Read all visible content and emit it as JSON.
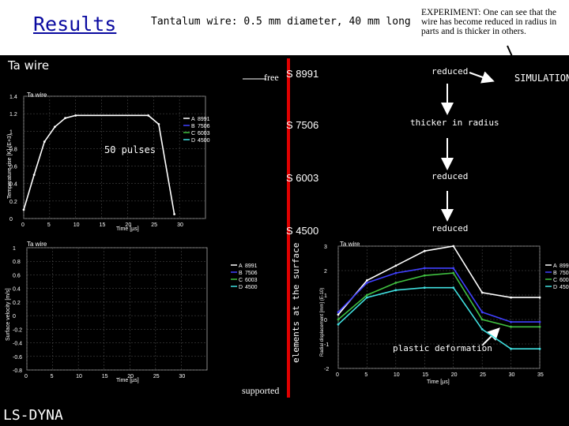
{
  "header": {
    "title": "Results",
    "subtitle": "Tantalum wire: 0.5 mm diameter, 40 mm long",
    "experiment": "EXPERIMENT: One can see that the wire has become reduced in radius in parts and is thicker in others."
  },
  "ta_wire_label": "Ta wire",
  "labels": {
    "free": "free",
    "supported": "supported",
    "elements_at_surface": "elements at the surface",
    "fifty_pulses": "50 pulses",
    "simulation": "SIMULATION",
    "plastic_deformation": "plastic deformation",
    "ls_dyna": "LS-DYNA"
  },
  "surface_elements": [
    {
      "id": "S 8991",
      "state": "reduced"
    },
    {
      "id": "S 7506",
      "state": "thicker in radius"
    },
    {
      "id": "S 6003",
      "state": "reduced"
    },
    {
      "id": "S 4500",
      "state": "reduced"
    }
  ],
  "legend_entries": [
    {
      "marker": "A",
      "id": "8991"
    },
    {
      "marker": "B",
      "id": "7506"
    },
    {
      "marker": "C",
      "id": "6003"
    },
    {
      "marker": "D",
      "id": "4500"
    }
  ],
  "colors": {
    "series_a": "#ffffff",
    "series_b": "#4040ff",
    "series_c": "#40c040",
    "series_d": "#40e0e0",
    "accent_red": "#e00000",
    "title_blue": "#0a0aa0"
  },
  "chart_data": [
    {
      "type": "line",
      "title": "Ta wire",
      "xlabel": "Time [µs]",
      "ylabel": "Temperature rise [K] (E+3)",
      "xlim": [
        0,
        35
      ],
      "ylim": [
        0,
        1.4
      ],
      "x_ticks": [
        "0",
        "5",
        "10",
        "15",
        "20",
        "25",
        "30"
      ],
      "y_ticks": [
        "0",
        "0.2",
        "0.4",
        "0.6",
        "0.8",
        "1",
        "1.2",
        "1.4"
      ],
      "series": [
        {
          "name": "8991",
          "x": [
            0,
            2,
            4,
            6,
            8,
            10,
            24,
            26,
            29
          ],
          "y": [
            0.1,
            0.5,
            0.88,
            1.05,
            1.15,
            1.18,
            1.18,
            1.08,
            0.05
          ]
        }
      ]
    },
    {
      "type": "line",
      "title": "Ta wire",
      "xlabel": "Time [µs]",
      "ylabel": "Surface velocity [m/s]",
      "xlim": [
        0,
        35
      ],
      "ylim": [
        -0.8,
        1.0
      ],
      "x_ticks": [
        "0",
        "5",
        "10",
        "15",
        "20",
        "25",
        "30"
      ],
      "y_ticks": [
        "-0.8",
        "-0.6",
        "-0.4",
        "-0.2",
        "0",
        "0.2",
        "0.4",
        "0.6",
        "0.8",
        "1"
      ]
    },
    {
      "type": "line",
      "title": "Ta wire",
      "xlabel": "Time [µs]",
      "ylabel": "Radial displacement [mm] (E-10)",
      "xlim": [
        0,
        35
      ],
      "ylim": [
        -2,
        3
      ],
      "x_ticks": [
        "0",
        "5",
        "10",
        "15",
        "20",
        "25",
        "30",
        "35"
      ],
      "y_ticks": [
        "-2",
        "-1",
        "0",
        "1",
        "2",
        "3"
      ],
      "series": [
        {
          "name": "8991",
          "x": [
            0,
            5,
            10,
            15,
            20,
            25,
            30,
            35
          ],
          "y": [
            0.2,
            1.6,
            2.2,
            2.8,
            3.0,
            1.1,
            0.9,
            0.9
          ]
        },
        {
          "name": "7506",
          "x": [
            0,
            5,
            10,
            15,
            20,
            25,
            30,
            35
          ],
          "y": [
            0.3,
            1.5,
            1.9,
            2.1,
            2.1,
            0.3,
            -0.1,
            -0.1
          ]
        },
        {
          "name": "6003",
          "x": [
            0,
            5,
            10,
            15,
            20,
            25,
            30,
            35
          ],
          "y": [
            0.0,
            1.0,
            1.5,
            1.8,
            1.9,
            0.0,
            -0.3,
            -0.3
          ]
        },
        {
          "name": "4500",
          "x": [
            0,
            5,
            10,
            15,
            20,
            25,
            30,
            35
          ],
          "y": [
            -0.2,
            0.9,
            1.2,
            1.3,
            1.3,
            -0.4,
            -1.2,
            -1.2
          ]
        }
      ]
    }
  ]
}
